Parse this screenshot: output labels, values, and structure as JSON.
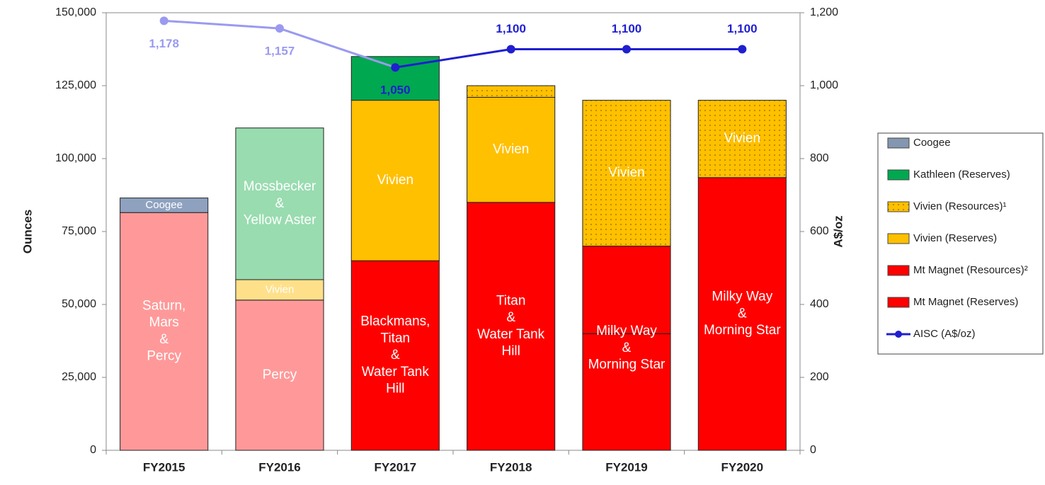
{
  "chart_data": {
    "type": "stacked_bar_line",
    "categories": [
      "FY2015",
      "FY2016",
      "FY2017",
      "FY2018",
      "FY2019",
      "FY2020"
    ],
    "series": [
      {
        "name": "Mt Magnet (Reserves)",
        "color": "#ff0000",
        "colors": [
          "#ff9999",
          "#ff9999",
          "#ff0000",
          "#ff0000",
          "#ff0000",
          "#ff0000"
        ],
        "values": [
          81500,
          51500,
          65000,
          85000,
          40000,
          93500
        ]
      },
      {
        "name": "Mt Magnet (Resources)²",
        "color": "#ff0000",
        "colors": [
          null,
          null,
          null,
          null,
          "#ff0000",
          null
        ],
        "values": [
          null,
          null,
          null,
          null,
          30000,
          null
        ]
      },
      {
        "name": "Vivien (Reserves)",
        "color": "#ffc000",
        "colors": [
          null,
          "#ffe08a",
          "#ffc000",
          "#ffc000",
          null,
          null
        ],
        "values": [
          null,
          7000,
          55000,
          36000,
          null,
          null
        ]
      },
      {
        "name": "Vivien (Resources)¹",
        "color": "#ffc000",
        "pattern": "dots",
        "colors": [
          null,
          null,
          null,
          "#ffc000",
          "#ffc000",
          "#ffc000"
        ],
        "values": [
          null,
          null,
          null,
          4000,
          50000,
          26500
        ]
      },
      {
        "name": "Kathleen (Reserves)",
        "color": "#00a850",
        "colors": [
          null,
          "#99dcb0",
          "#00a850",
          null,
          null,
          null
        ],
        "values": [
          null,
          52000,
          15000,
          null,
          null,
          null
        ]
      },
      {
        "name": "Coogee",
        "color": "#8497b0",
        "colors": [
          "#8ea2c0",
          null,
          null,
          null,
          null,
          null
        ],
        "values": [
          5000,
          null,
          null,
          null,
          null,
          null
        ]
      },
      {
        "name": "AISC (A$/oz)",
        "type": "line",
        "axis": "y2",
        "color": "#1f1fd0",
        "colors": [
          "#9a9af0",
          "#9a9af0",
          "#1f1fd0",
          "#1f1fd0",
          "#1f1fd0",
          "#1f1fd0"
        ],
        "values": [
          1178,
          1157,
          1050,
          1100,
          1100,
          1100
        ],
        "value_labels": [
          "1,178",
          "1,157",
          "1,050",
          "1,100",
          "1,100",
          "1,100"
        ]
      }
    ],
    "annotations": [
      {
        "category": 0,
        "series": [
          0
        ],
        "text": "Saturn,\nMars\n&\nPercy"
      },
      {
        "category": 0,
        "series": [
          5
        ],
        "text": "Coogee"
      },
      {
        "category": 1,
        "series": [
          0
        ],
        "text": "Percy"
      },
      {
        "category": 1,
        "series": [
          2
        ],
        "text": "Vivien"
      },
      {
        "category": 1,
        "series": [
          4
        ],
        "text": "Mossbecker\n&\nYellow Aster"
      },
      {
        "category": 2,
        "series": [
          0
        ],
        "text": "Blackmans,\nTitan\n&\nWater Tank\nHill"
      },
      {
        "category": 2,
        "series": [
          2
        ],
        "text": "Vivien"
      },
      {
        "category": 3,
        "series": [
          0
        ],
        "text": "Titan\n&\nWater Tank\nHill"
      },
      {
        "category": 3,
        "series": [
          2
        ],
        "text": "Vivien"
      },
      {
        "category": 4,
        "series": [
          0,
          1
        ],
        "text": "Milky Way\n&\nMorning Star"
      },
      {
        "category": 4,
        "series": [
          3
        ],
        "text": "Vivien"
      },
      {
        "category": 5,
        "series": [
          0
        ],
        "text": "Milky Way\n&\nMorning Star"
      },
      {
        "category": 5,
        "series": [
          3
        ],
        "text": "Vivien"
      }
    ],
    "ylabel": "Ounces",
    "y2label": "A$/oz",
    "ylim": [
      0,
      150000
    ],
    "yticks": [
      0,
      {
        "value": 25000,
        "label": "25,000"
      },
      {
        "value": 50000,
        "label": "50,000"
      },
      {
        "value": 75000,
        "label": "75,000"
      },
      {
        "value": 100000,
        "label": "100,000"
      },
      {
        "value": 125000,
        "label": "125,000"
      },
      {
        "value": 150000,
        "label": "150,000"
      }
    ],
    "y2lim": [
      0,
      1200
    ],
    "y2ticks": [
      0,
      200,
      400,
      600,
      800,
      {
        "value": 1000,
        "label": "1,000"
      },
      {
        "value": 1200,
        "label": "1,200"
      }
    ],
    "legend": "right"
  }
}
